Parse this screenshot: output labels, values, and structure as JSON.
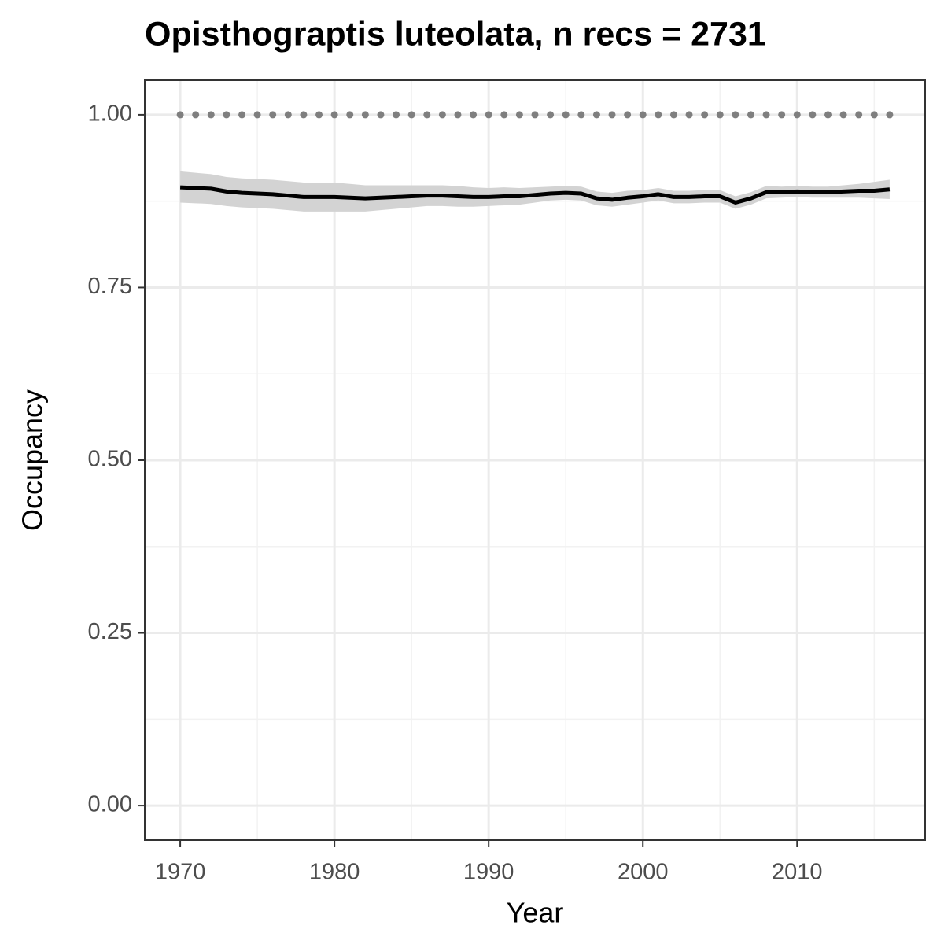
{
  "chart_data": {
    "type": "line",
    "title": "Opisthograptis luteolata, n recs = 2731",
    "x_label": "Year",
    "y_label": "Occupancy",
    "x": [
      1970,
      1971,
      1972,
      1973,
      1974,
      1975,
      1976,
      1977,
      1978,
      1979,
      1980,
      1981,
      1982,
      1983,
      1984,
      1985,
      1986,
      1987,
      1988,
      1989,
      1990,
      1991,
      1992,
      1993,
      1994,
      1995,
      1996,
      1997,
      1998,
      1999,
      2000,
      2001,
      2002,
      2003,
      2004,
      2005,
      2006,
      2007,
      2008,
      2009,
      2010,
      2011,
      2012,
      2013,
      2014,
      2015,
      2016
    ],
    "series": [
      {
        "color": "#000000",
        "ribbon_color": "#d3d3d3",
        "values": [
          0.895,
          0.894,
          0.893,
          0.889,
          0.887,
          0.886,
          0.885,
          0.883,
          0.881,
          0.881,
          0.881,
          0.88,
          0.879,
          0.88,
          0.881,
          0.882,
          0.883,
          0.883,
          0.882,
          0.881,
          0.881,
          0.882,
          0.882,
          0.884,
          0.886,
          0.887,
          0.886,
          0.879,
          0.877,
          0.88,
          0.882,
          0.885,
          0.881,
          0.881,
          0.882,
          0.882,
          0.873,
          0.879,
          0.888,
          0.888,
          0.889,
          0.888,
          0.888,
          0.889,
          0.89,
          0.89,
          0.892
        ],
        "lower": [
          0.873,
          0.872,
          0.871,
          0.868,
          0.866,
          0.865,
          0.864,
          0.862,
          0.86,
          0.86,
          0.86,
          0.86,
          0.86,
          0.862,
          0.864,
          0.866,
          0.868,
          0.868,
          0.867,
          0.867,
          0.868,
          0.869,
          0.87,
          0.873,
          0.876,
          0.877,
          0.876,
          0.869,
          0.867,
          0.87,
          0.873,
          0.876,
          0.872,
          0.872,
          0.873,
          0.873,
          0.864,
          0.87,
          0.879,
          0.88,
          0.881,
          0.88,
          0.88,
          0.88,
          0.88,
          0.879,
          0.878
        ],
        "upper": [
          0.918,
          0.916,
          0.914,
          0.91,
          0.908,
          0.907,
          0.906,
          0.904,
          0.902,
          0.902,
          0.902,
          0.9,
          0.898,
          0.898,
          0.898,
          0.898,
          0.898,
          0.898,
          0.897,
          0.895,
          0.894,
          0.895,
          0.894,
          0.895,
          0.896,
          0.897,
          0.896,
          0.889,
          0.887,
          0.89,
          0.891,
          0.894,
          0.89,
          0.89,
          0.891,
          0.891,
          0.882,
          0.888,
          0.897,
          0.896,
          0.897,
          0.896,
          0.896,
          0.898,
          0.9,
          0.903,
          0.906
        ]
      },
      {
        "color": "#7f7f7f",
        "linestyle": "dotted",
        "values": [
          1,
          1,
          1,
          1,
          1,
          1,
          1,
          1,
          1,
          1,
          1,
          1,
          1,
          1,
          1,
          1,
          1,
          1,
          1,
          1,
          1,
          1,
          1,
          1,
          1,
          1,
          1,
          1,
          1,
          1,
          1,
          1,
          1,
          1,
          1,
          1,
          1,
          1,
          1,
          1,
          1,
          1,
          1,
          1,
          1,
          1,
          1
        ]
      }
    ],
    "xlim": [
      1967.7,
      2018.3
    ],
    "xticks": [
      1970,
      1980,
      1990,
      2000,
      2010
    ],
    "xminorticks": [
      1975,
      1985,
      1995,
      2005,
      2015
    ],
    "ylim": [
      -0.05,
      1.05
    ],
    "yticks": [
      {
        "value": 0,
        "label": "0.00"
      },
      {
        "value": 0.25,
        "label": "0.25"
      },
      {
        "value": 0.5,
        "label": "0.50"
      },
      {
        "value": 0.75,
        "label": "0.75"
      },
      {
        "value": 1,
        "label": "1.00"
      }
    ],
    "yminorticks": [
      0.125,
      0.375,
      0.625,
      0.875
    ],
    "grid": true
  }
}
